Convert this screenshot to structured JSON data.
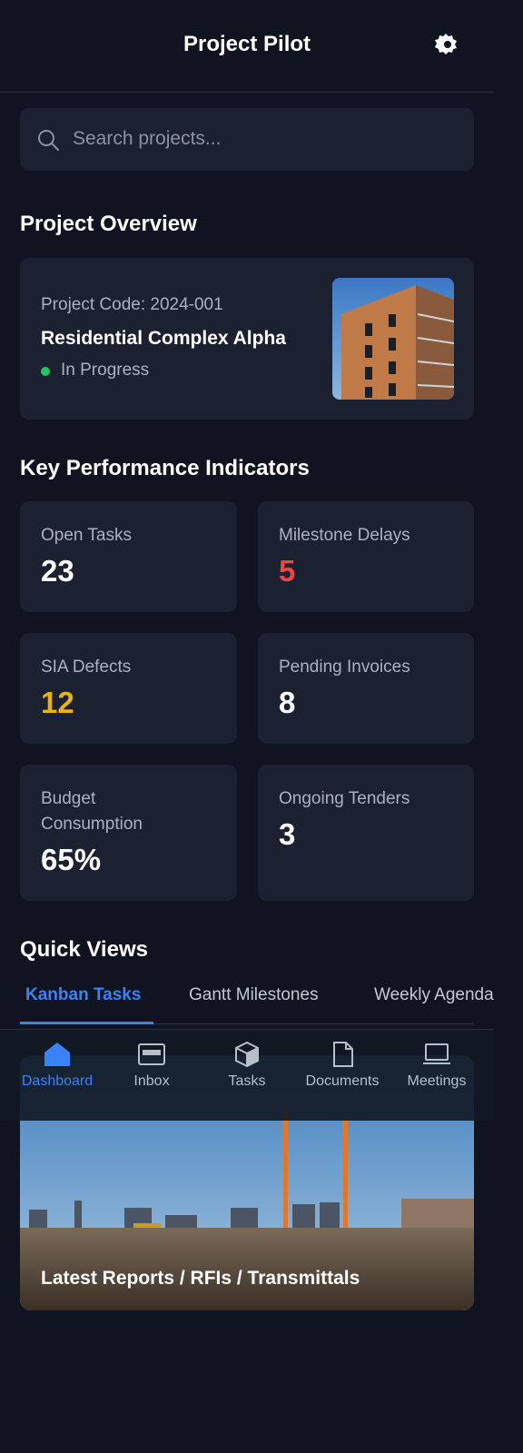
{
  "header": {
    "title": "Project Pilot"
  },
  "search": {
    "placeholder": "Search projects..."
  },
  "overview": {
    "heading": "Project Overview",
    "code": "Project Code: 2024-001",
    "name": "Residential Complex Alpha",
    "status": "In Progress"
  },
  "kpis": {
    "heading": "Key Performance Indicators",
    "items": [
      {
        "label": "Open Tasks",
        "value": "23"
      },
      {
        "label": "Milestone Delays",
        "value": "5"
      },
      {
        "label": "SIA Defects",
        "value": "12"
      },
      {
        "label": "Pending Invoices",
        "value": "8"
      },
      {
        "label": "Budget Consumption",
        "value": "65%"
      },
      {
        "label": "Ongoing Tenders",
        "value": "3"
      }
    ]
  },
  "quick_views": {
    "heading": "Quick Views",
    "tabs": [
      "Kanban Tasks",
      "Gantt Milestones",
      "Weekly Agenda"
    ]
  },
  "reports": {
    "title": "Latest Reports / RFIs / Transmittals"
  },
  "nav": {
    "items": [
      "Dashboard",
      "Inbox",
      "Tasks",
      "Documents",
      "Meetings"
    ]
  }
}
